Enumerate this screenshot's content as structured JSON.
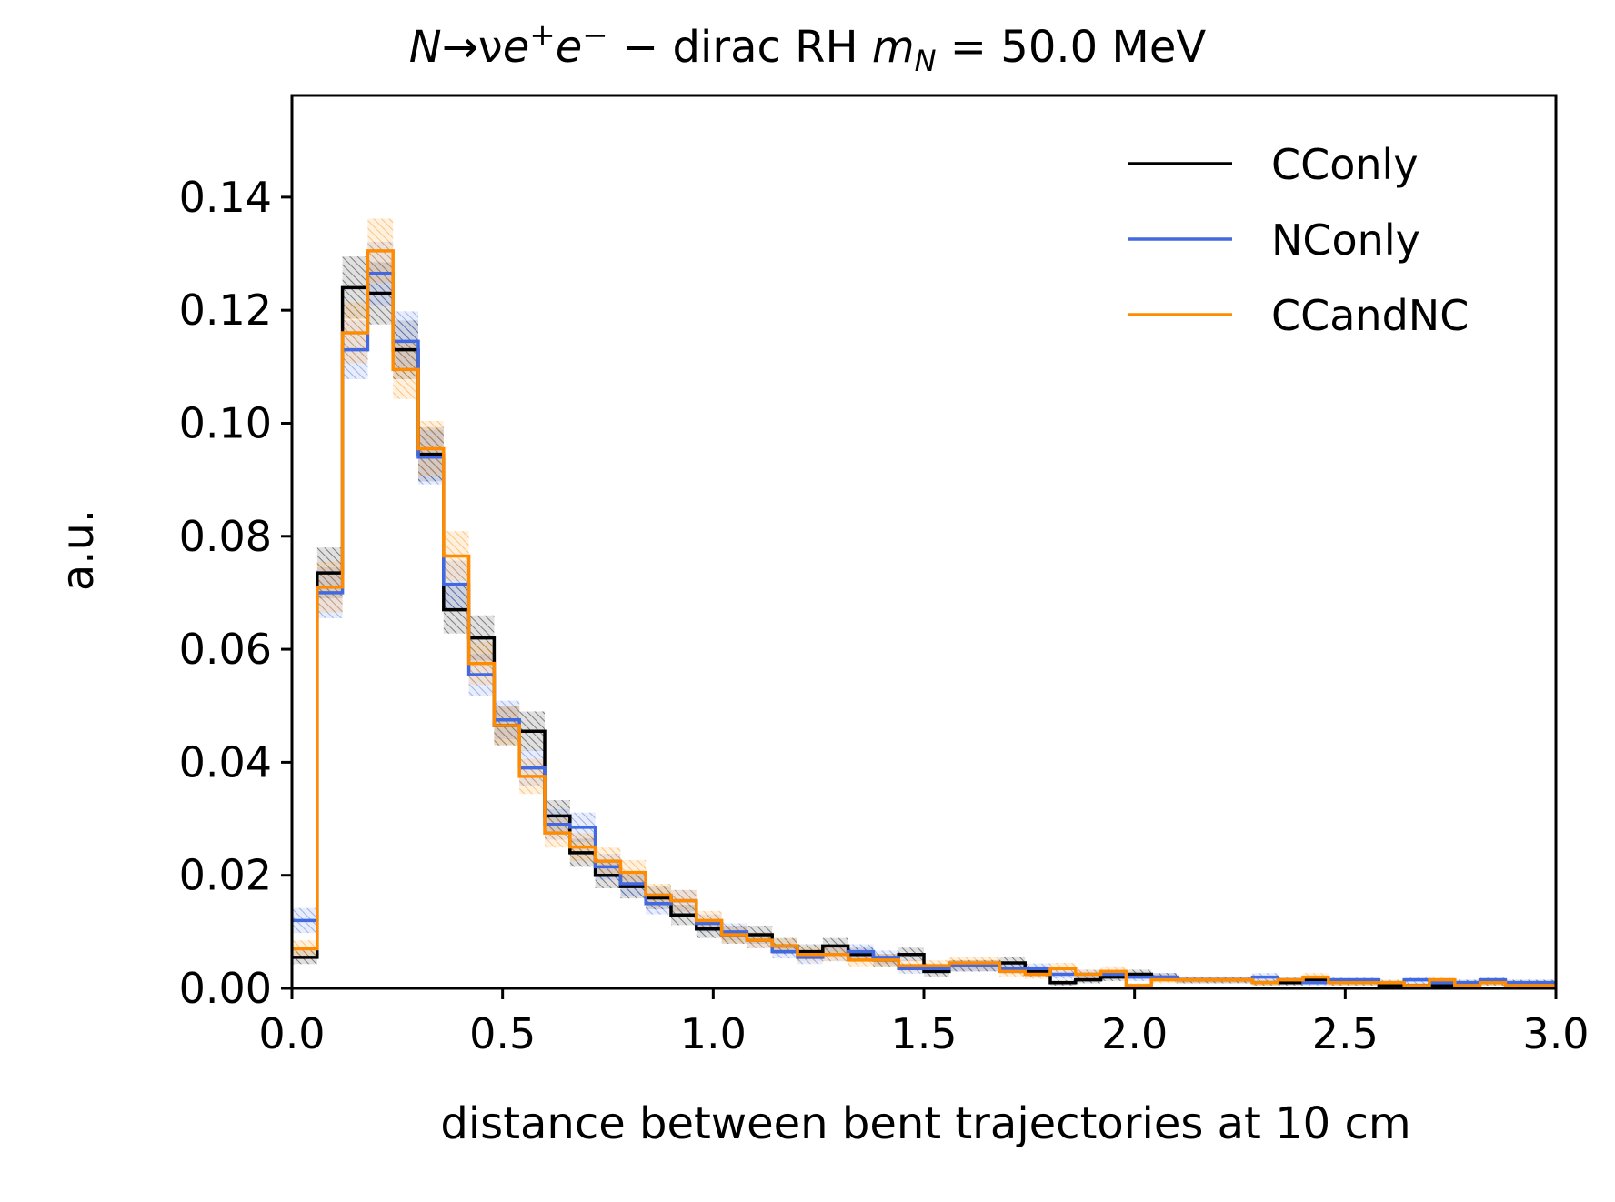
{
  "chart_data": {
    "type": "histogram",
    "title_parts": {
      "n": "N",
      "arrow_nu": "→ν",
      "e": "e",
      "sup_plus": "+",
      "sup_minus": "−",
      "middle": " − dirac RH ",
      "m": "m",
      "sub_N": "N",
      "tail": " = 50.0 MeV"
    },
    "xlabel": "distance between bent trajectories at 10 cm",
    "ylabel": "a.u.",
    "xlim": [
      0.0,
      3.0
    ],
    "ylim": [
      0.0,
      0.158
    ],
    "x_ticks": [
      0.0,
      0.5,
      1.0,
      1.5,
      2.0,
      2.5,
      3.0
    ],
    "x_tick_labels": [
      "0.0",
      "0.5",
      "1.0",
      "1.5",
      "2.0",
      "2.5",
      "3.0"
    ],
    "y_ticks": [
      0.0,
      0.02,
      0.04,
      0.06,
      0.08,
      0.1,
      0.12,
      0.14
    ],
    "y_tick_labels": [
      "0.00",
      "0.02",
      "0.04",
      "0.06",
      "0.08",
      "0.10",
      "0.12",
      "0.14"
    ],
    "legend_position": "top-right",
    "grid": false,
    "bin_width": 0.06,
    "bin_edges_start": 0.0,
    "error_band": "hatched",
    "series": [
      {
        "name": "CConly",
        "color": "#000000",
        "values": [
          0.0055,
          0.0735,
          0.124,
          0.123,
          0.113,
          0.0945,
          0.067,
          0.062,
          0.0465,
          0.0455,
          0.0305,
          0.024,
          0.02,
          0.018,
          0.016,
          0.013,
          0.0105,
          0.0095,
          0.0095,
          0.0075,
          0.0065,
          0.0075,
          0.006,
          0.005,
          0.006,
          0.003,
          0.004,
          0.004,
          0.0045,
          0.003,
          0.001,
          0.0015,
          0.002,
          0.0025,
          0.002,
          0.0015,
          0.0015,
          0.0015,
          0.001,
          0.001,
          0.0015,
          0.001,
          0.001,
          0.0005,
          0.0005,
          0.0005,
          0.001,
          0.001,
          0.001,
          0.001
        ],
        "errors": [
          0.0012,
          0.0045,
          0.0055,
          0.0055,
          0.0052,
          0.0048,
          0.0042,
          0.004,
          0.0035,
          0.0035,
          0.0028,
          0.0025,
          0.0023,
          0.0021,
          0.002,
          0.0018,
          0.0016,
          0.0016,
          0.0016,
          0.0014,
          0.0013,
          0.0014,
          0.0012,
          0.0011,
          0.0012,
          0.0009,
          0.001,
          0.001,
          0.0011,
          0.0009,
          0.0005,
          0.0006,
          0.0007,
          0.0008,
          0.0007,
          0.0006,
          0.0006,
          0.0006,
          0.0005,
          0.0005,
          0.0006,
          0.0005,
          0.0005,
          0.0004,
          0.0004,
          0.0004,
          0.0005,
          0.0005,
          0.0005,
          0.0005
        ]
      },
      {
        "name": "NConly",
        "color": "#4169E1",
        "values": [
          0.012,
          0.07,
          0.113,
          0.1265,
          0.1145,
          0.094,
          0.0715,
          0.0555,
          0.0475,
          0.039,
          0.029,
          0.0285,
          0.0215,
          0.0185,
          0.015,
          0.0155,
          0.0115,
          0.01,
          0.0085,
          0.0065,
          0.0055,
          0.006,
          0.0065,
          0.0055,
          0.0035,
          0.0035,
          0.004,
          0.004,
          0.0035,
          0.0035,
          0.0025,
          0.0025,
          0.0025,
          0.002,
          0.002,
          0.0015,
          0.0015,
          0.0015,
          0.002,
          0.0015,
          0.001,
          0.0015,
          0.0015,
          0.001,
          0.0015,
          0.001,
          0.001,
          0.0015,
          0.001,
          0.001
        ],
        "errors": [
          0.0022,
          0.0045,
          0.0052,
          0.0056,
          0.0053,
          0.0048,
          0.0042,
          0.0037,
          0.0034,
          0.0031,
          0.0027,
          0.0026,
          0.0023,
          0.0021,
          0.0019,
          0.0019,
          0.0016,
          0.0015,
          0.0014,
          0.0012,
          0.0012,
          0.0012,
          0.0013,
          0.0012,
          0.0009,
          0.0009,
          0.001,
          0.001,
          0.0009,
          0.0009,
          0.0008,
          0.0008,
          0.0008,
          0.0007,
          0.0007,
          0.0006,
          0.0006,
          0.0006,
          0.0007,
          0.0006,
          0.0005,
          0.0006,
          0.0006,
          0.0005,
          0.0006,
          0.0005,
          0.0005,
          0.0006,
          0.0005,
          0.0005
        ]
      },
      {
        "name": "CCandNC",
        "color": "#FF8C00",
        "values": [
          0.007,
          0.071,
          0.116,
          0.1305,
          0.1095,
          0.0955,
          0.0765,
          0.0575,
          0.0465,
          0.0375,
          0.0275,
          0.025,
          0.0225,
          0.0205,
          0.0165,
          0.0155,
          0.012,
          0.0095,
          0.0085,
          0.0075,
          0.006,
          0.006,
          0.005,
          0.005,
          0.004,
          0.004,
          0.0045,
          0.0045,
          0.003,
          0.0025,
          0.0035,
          0.0025,
          0.003,
          0.0005,
          0.0015,
          0.0015,
          0.0015,
          0.0015,
          0.001,
          0.0015,
          0.002,
          0.001,
          0.001,
          0.001,
          0.0005,
          0.0015,
          0.0005,
          0.001,
          0.0005,
          0.0005
        ],
        "errors": [
          0.0015,
          0.0045,
          0.0054,
          0.0057,
          0.0052,
          0.0049,
          0.0044,
          0.0038,
          0.0034,
          0.0031,
          0.0026,
          0.0025,
          0.0024,
          0.0022,
          0.002,
          0.0019,
          0.0017,
          0.0015,
          0.0014,
          0.0013,
          0.0012,
          0.0012,
          0.0011,
          0.0011,
          0.001,
          0.001,
          0.0011,
          0.0011,
          0.0009,
          0.0008,
          0.001,
          0.0008,
          0.0009,
          0.0004,
          0.0006,
          0.0006,
          0.0006,
          0.0006,
          0.0005,
          0.0006,
          0.0007,
          0.0005,
          0.0005,
          0.0005,
          0.0004,
          0.0006,
          0.0004,
          0.0005,
          0.0004,
          0.0004
        ]
      }
    ]
  }
}
